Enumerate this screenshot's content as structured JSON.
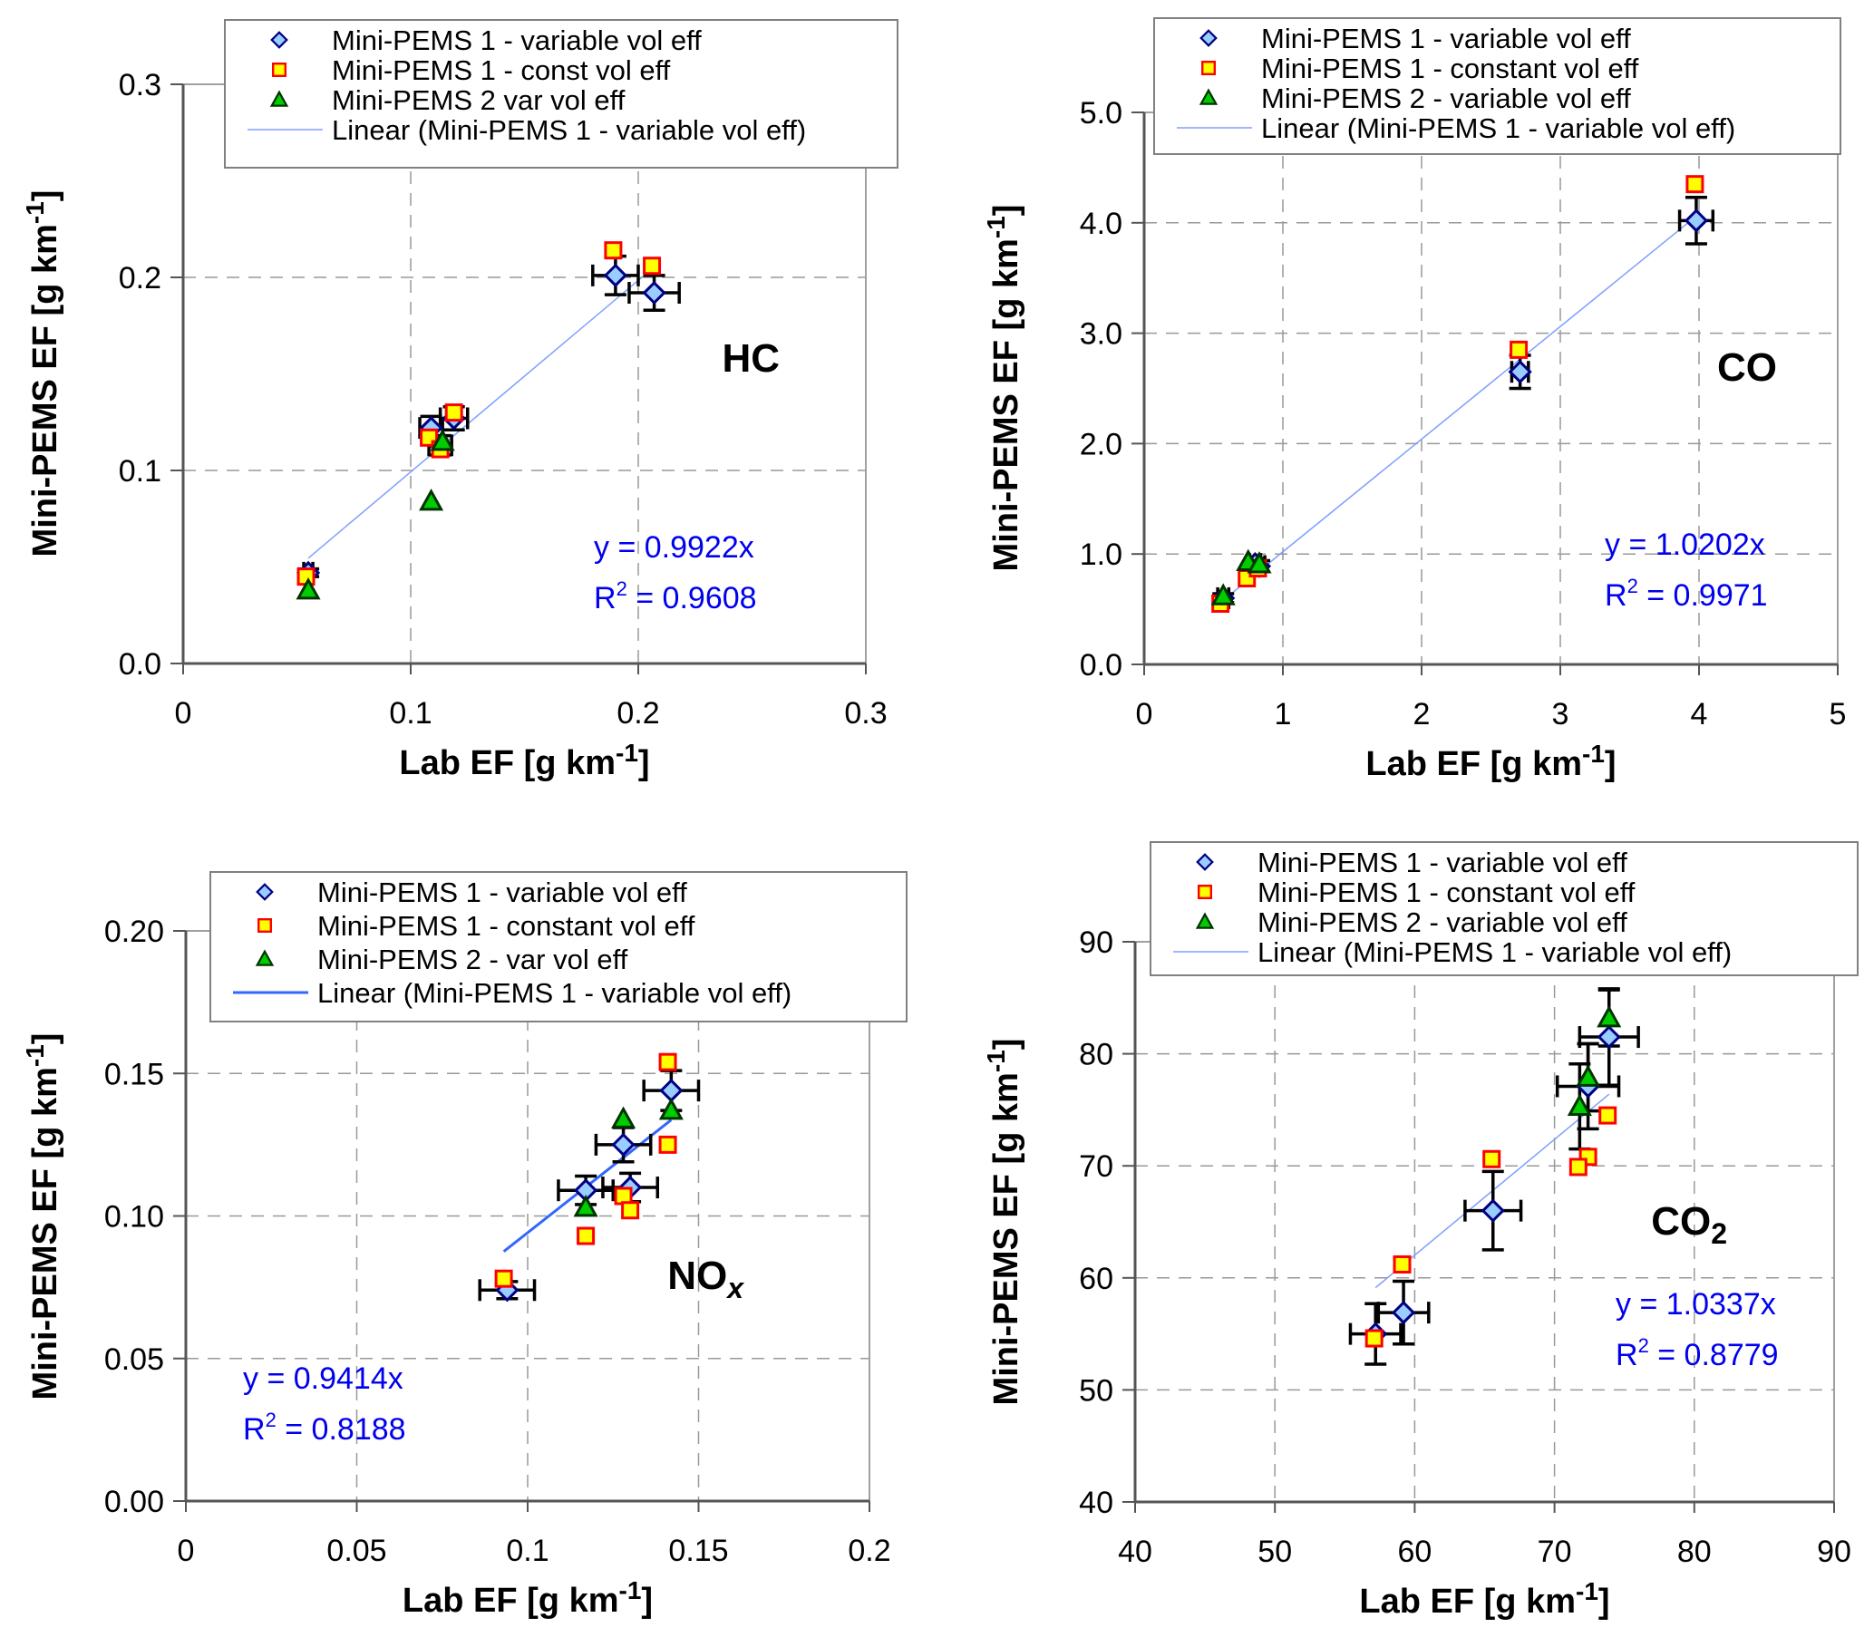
{
  "figure": {
    "colors": {
      "diamond_fill": "#99ccff",
      "diamond_stroke": "#000080",
      "square_fill": "#ffff00",
      "square_stroke": "#ff0000",
      "triangle_fill": "#00cc00",
      "triangle_stroke": "#003300",
      "trend_light": "#7f9fff",
      "trend_dark": "#3366ff",
      "equation": "#0000ee",
      "grid": "#999999",
      "axis": "#808080"
    }
  },
  "chart_data": [
    {
      "id": "hc",
      "type": "scatter",
      "title": "HC",
      "title_sub": "",
      "xlabel": "Lab EF [g km-1]",
      "ylabel": "Mini-PEMS EF [g km-1]",
      "xlim": [
        0,
        0.3
      ],
      "ylim": [
        0,
        0.3
      ],
      "xticks": [
        0,
        0.1,
        0.2,
        0.3
      ],
      "xtick_labels": [
        "0",
        "0.1",
        "0.2",
        "0.3"
      ],
      "yticks": [
        0,
        0.1,
        0.2,
        0.3
      ],
      "ytick_labels": [
        "0.0",
        "0.1",
        "0.2",
        "0.3"
      ],
      "grid": true,
      "legend_position": "top",
      "legend": [
        "Mini-PEMS 1 - variable vol eff",
        "Mini-PEMS 1 - const vol eff",
        "Mini-PEMS 2 var vol eff",
        "Linear (Mini-PEMS 1 - variable vol eff)"
      ],
      "equation": "y = 0.9922x",
      "r2_label": "R",
      "r2_value": " = 0.9608",
      "trend": {
        "slope": 0.9922,
        "x_range": [
          0.055,
          0.207
        ],
        "style": "light"
      },
      "series": [
        {
          "name": "Mini-PEMS 1 - variable vol eff",
          "marker": "diamond",
          "points": [
            {
              "x": 0.19,
              "y": 0.201,
              "xerr": 0.01,
              "yerr": 0.01
            },
            {
              "x": 0.207,
              "y": 0.192,
              "xerr": 0.011,
              "yerr": 0.009
            },
            {
              "x": 0.109,
              "y": 0.122,
              "xerr": 0.005,
              "yerr": 0.006
            },
            {
              "x": 0.119,
              "y": 0.127,
              "xerr": 0.006,
              "yerr": 0.006
            },
            {
              "x": 0.113,
              "y": 0.113,
              "xerr": 0.005,
              "yerr": 0.005
            },
            {
              "x": 0.055,
              "y": 0.047,
              "xerr": 0.002,
              "yerr": 0.002
            }
          ]
        },
        {
          "name": "Mini-PEMS 1 - const vol eff",
          "marker": "square",
          "points": [
            {
              "x": 0.189,
              "y": 0.214
            },
            {
              "x": 0.206,
              "y": 0.206
            },
            {
              "x": 0.119,
              "y": 0.13
            },
            {
              "x": 0.108,
              "y": 0.117
            },
            {
              "x": 0.113,
              "y": 0.111
            },
            {
              "x": 0.054,
              "y": 0.045
            }
          ]
        },
        {
          "name": "Mini-PEMS 2 var vol eff",
          "marker": "triangle",
          "points": [
            {
              "x": 0.114,
              "y": 0.115
            },
            {
              "x": 0.109,
              "y": 0.084
            },
            {
              "x": 0.055,
              "y": 0.038
            }
          ]
        }
      ]
    },
    {
      "id": "co",
      "type": "scatter",
      "title": "CO",
      "title_sub": "",
      "xlabel": "Lab EF [g km-1]",
      "ylabel": "Mini-PEMS EF [g km-1]",
      "xlim": [
        0,
        5
      ],
      "ylim": [
        0,
        5
      ],
      "xticks": [
        0,
        1,
        2,
        3,
        4,
        5
      ],
      "xtick_labels": [
        "0",
        "1",
        "2",
        "3",
        "4",
        "5"
      ],
      "yticks": [
        0,
        1,
        2,
        3,
        4,
        5
      ],
      "ytick_labels": [
        "0.0",
        "1.0",
        "2.0",
        "3.0",
        "4.0",
        "5.0"
      ],
      "grid": true,
      "legend_position": "top",
      "legend": [
        "Mini-PEMS 1 - variable vol eff",
        "Mini-PEMS 1 - constant vol eff",
        "Mini-PEMS 2 - variable vol eff",
        "Linear (Mini-PEMS 1 - variable vol eff)"
      ],
      "equation": "y = 1.0202x",
      "r2_label": "R",
      "r2_value": " = 0.9971",
      "trend": {
        "slope": 1.0202,
        "x_range": [
          0.57,
          3.98
        ],
        "style": "light"
      },
      "series": [
        {
          "name": "Mini-PEMS 1 - variable vol eff",
          "marker": "diamond",
          "points": [
            {
              "x": 3.98,
              "y": 4.02,
              "xerr": 0.12,
              "yerr": 0.21
            },
            {
              "x": 2.71,
              "y": 2.65,
              "xerr": 0.06,
              "yerr": 0.15
            },
            {
              "x": 0.57,
              "y": 0.6,
              "xerr": 0.04,
              "yerr": 0.04
            },
            {
              "x": 0.8,
              "y": 0.91,
              "xerr": 0.04,
              "yerr": 0.05
            },
            {
              "x": 0.83,
              "y": 0.89,
              "xerr": 0.04,
              "yerr": 0.05
            }
          ]
        },
        {
          "name": "Mini-PEMS 1 - constant vol eff",
          "marker": "square",
          "points": [
            {
              "x": 3.97,
              "y": 4.35
            },
            {
              "x": 2.7,
              "y": 2.85
            },
            {
              "x": 0.55,
              "y": 0.55
            },
            {
              "x": 0.74,
              "y": 0.78
            },
            {
              "x": 0.82,
              "y": 0.87
            }
          ]
        },
        {
          "name": "Mini-PEMS 2 - variable vol eff",
          "marker": "triangle",
          "points": [
            {
              "x": 0.57,
              "y": 0.62
            },
            {
              "x": 0.75,
              "y": 0.93
            },
            {
              "x": 0.83,
              "y": 0.91
            }
          ]
        }
      ]
    },
    {
      "id": "nox",
      "type": "scatter",
      "title": "NO",
      "title_sub": "x",
      "xlabel": "Lab EF [g km-1]",
      "ylabel": "Mini-PEMS EF [g km-1]",
      "xlim": [
        0,
        0.2
      ],
      "ylim": [
        0,
        0.2
      ],
      "xticks": [
        0,
        0.05,
        0.1,
        0.15,
        0.2
      ],
      "xtick_labels": [
        "0",
        "0.05",
        "0.1",
        "0.15",
        "0.2"
      ],
      "yticks": [
        0,
        0.05,
        0.1,
        0.15,
        0.2
      ],
      "ytick_labels": [
        "0.00",
        "0.05",
        "0.10",
        "0.15",
        "0.20"
      ],
      "grid": true,
      "legend_position": "top",
      "legend": [
        "Mini-PEMS 1 - variable vol eff",
        "Mini-PEMS 1 - constant vol eff",
        "Mini-PEMS 2 - var vol eff",
        "Linear (Mini-PEMS 1 - variable vol eff)"
      ],
      "equation": "y = 0.9414x",
      "r2_label": "R",
      "r2_value": " = 0.8188",
      "trend": {
        "slope": 0.9414,
        "x_range": [
          0.093,
          0.142
        ],
        "style": "dark"
      },
      "series": [
        {
          "name": "Mini-PEMS 1 - variable vol eff",
          "marker": "diamond",
          "points": [
            {
              "x": 0.142,
              "y": 0.144,
              "xerr": 0.008,
              "yerr": 0.007
            },
            {
              "x": 0.128,
              "y": 0.125,
              "xerr": 0.008,
              "yerr": 0.006
            },
            {
              "x": 0.117,
              "y": 0.109,
              "xerr": 0.008,
              "yerr": 0.005
            },
            {
              "x": 0.13,
              "y": 0.11,
              "xerr": 0.008,
              "yerr": 0.005
            },
            {
              "x": 0.094,
              "y": 0.074,
              "xerr": 0.008,
              "yerr": 0.003
            }
          ]
        },
        {
          "name": "Mini-PEMS 1 - constant vol eff",
          "marker": "square",
          "points": [
            {
              "x": 0.141,
              "y": 0.154
            },
            {
              "x": 0.141,
              "y": 0.125
            },
            {
              "x": 0.128,
              "y": 0.107
            },
            {
              "x": 0.13,
              "y": 0.102
            },
            {
              "x": 0.117,
              "y": 0.093
            },
            {
              "x": 0.093,
              "y": 0.078
            }
          ]
        },
        {
          "name": "Mini-PEMS 2 - var vol eff",
          "marker": "triangle",
          "points": [
            {
              "x": 0.142,
              "y": 0.137
            },
            {
              "x": 0.128,
              "y": 0.134
            },
            {
              "x": 0.117,
              "y": 0.103
            }
          ]
        }
      ]
    },
    {
      "id": "co2",
      "type": "scatter",
      "title": "CO",
      "title_sub": "2",
      "xlabel": "Lab EF [g km-1]",
      "ylabel": "Mini-PEMS EF [g km-1]",
      "xlim": [
        40,
        90
      ],
      "ylim": [
        40,
        90
      ],
      "xticks": [
        40,
        50,
        60,
        70,
        80,
        90
      ],
      "xtick_labels": [
        "40",
        "50",
        "60",
        "70",
        "80",
        "90"
      ],
      "yticks": [
        40,
        50,
        60,
        70,
        80,
        90
      ],
      "ytick_labels": [
        "40",
        "50",
        "60",
        "70",
        "80",
        "90"
      ],
      "grid": true,
      "legend_position": "top",
      "legend": [
        "Mini-PEMS 1 - variable vol eff",
        "Mini-PEMS 1 - constant vol eff",
        "Mini-PEMS 2 - variable vol eff",
        "Linear (Mini-PEMS 1 - variable vol eff)"
      ],
      "equation": "y = 1.0337x",
      "r2_label": "R",
      "r2_value": " = 0.8779",
      "trend": {
        "slope": 1.0337,
        "x_range": [
          57.2,
          73.9
        ],
        "style": "light"
      },
      "series": [
        {
          "name": "Mini-PEMS 1 - variable vol eff",
          "marker": "diamond",
          "points": [
            {
              "x": 73.9,
              "y": 81.5,
              "xerr": 2.1,
              "yerr": 4.3
            },
            {
              "x": 72.4,
              "y": 77.1,
              "xerr": 2.2,
              "yerr": 3.8
            },
            {
              "x": 65.6,
              "y": 66.0,
              "xerr": 2.0,
              "yerr": 3.5
            },
            {
              "x": 59.2,
              "y": 56.9,
              "xerr": 1.8,
              "yerr": 2.8
            },
            {
              "x": 57.2,
              "y": 55.0,
              "xerr": 1.8,
              "yerr": 2.7
            }
          ]
        },
        {
          "name": "Mini-PEMS 1 - constant vol eff",
          "marker": "square",
          "points": [
            {
              "x": 73.8,
              "y": 74.5
            },
            {
              "x": 72.4,
              "y": 70.8
            },
            {
              "x": 71.7,
              "y": 69.9
            },
            {
              "x": 65.5,
              "y": 70.6
            },
            {
              "x": 59.1,
              "y": 61.2
            },
            {
              "x": 57.1,
              "y": 54.6
            }
          ]
        },
        {
          "name": "Mini-PEMS 2 - variable vol eff",
          "marker": "triangle",
          "points": [
            {
              "x": 73.9,
              "y": 83.2,
              "yerr": 2.5
            },
            {
              "x": 72.4,
              "y": 77.9,
              "yerr": 3.0
            },
            {
              "x": 71.8,
              "y": 75.3,
              "yerr": 3.8
            }
          ]
        }
      ]
    }
  ]
}
